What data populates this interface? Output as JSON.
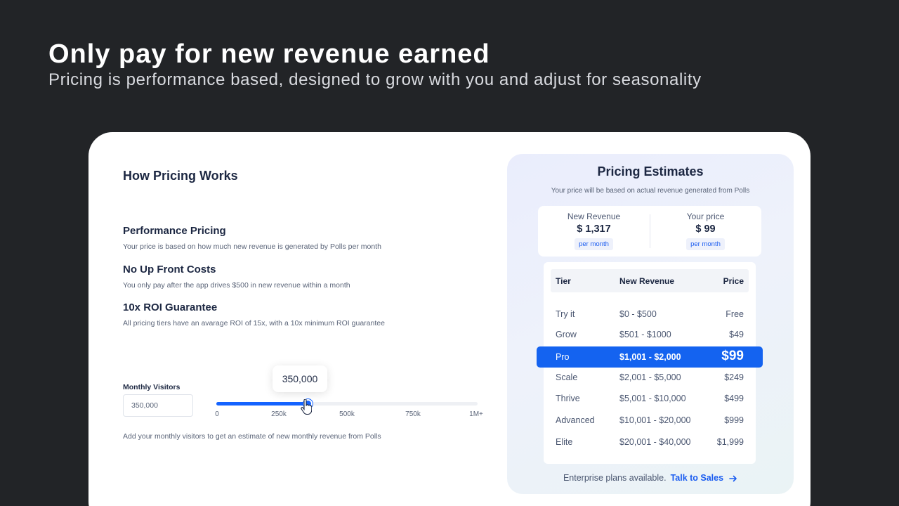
{
  "hero": {
    "title": "Only pay for new revenue earned",
    "subtitle": "Pricing is performance based, designed to grow with you and adjust for seasonality"
  },
  "left": {
    "title": "How Pricing Works",
    "features": [
      {
        "title": "Performance Pricing",
        "desc": "Your price is based on how much new revenue is generated by Polls per month"
      },
      {
        "title": "No Up Front Costs",
        "desc": "You only pay after the app drives $500 in new revenue within a month"
      },
      {
        "title": "10x ROI Guarantee",
        "desc": "All pricing tiers have an avarage ROI of 15x, with a 10x minimum ROI guarantee"
      }
    ],
    "visitors_label": "Monthly Visitors",
    "visitors_value": "350,000",
    "slider": {
      "tooltip": "350,000",
      "value": 350000,
      "max": 1000000,
      "ticks": [
        "0",
        "250k",
        "500k",
        "750k",
        "1M+"
      ]
    },
    "helper": "Add your monthly visitors to get an estimate of new monthly revenue from Polls"
  },
  "panel": {
    "title": "Pricing Estimates",
    "subtitle": "Your price will be based on actual revenue generated from Polls",
    "new_revenue_label": "New Revenue",
    "new_revenue_value": "$ 1,317",
    "new_revenue_period": "per month",
    "price_label": "Your price",
    "price_value": "$ 99",
    "price_period": "per month",
    "table_headers": {
      "tier": "Tier",
      "revenue": "New Revenue",
      "price": "Price"
    },
    "tiers": [
      {
        "tier": "Try it",
        "revenue": "$0 - $500",
        "price": "Free"
      },
      {
        "tier": "Grow",
        "revenue": "$501 - $1000",
        "price": "$49"
      },
      {
        "tier": "Pro",
        "revenue": "$1,001 - $2,000",
        "price": "$99"
      },
      {
        "tier": "Scale",
        "revenue": "$2,001 - $5,000",
        "price": "$249"
      },
      {
        "tier": "Thrive",
        "revenue": "$5,001 - $10,000",
        "price": "$499"
      },
      {
        "tier": "Advanced",
        "revenue": "$10,001 - $20,000",
        "price": "$999"
      },
      {
        "tier": "Elite",
        "revenue": "$20,001 - $40,000",
        "price": "$1,999"
      }
    ],
    "enterprise_text": "Enterprise plans available.",
    "talk_link": "Talk to Sales"
  },
  "colors": {
    "accent": "#1463f0",
    "background": "#222427"
  },
  "icons": {
    "cursor": "hand-pointer-icon",
    "arrow": "arrow-right-icon"
  }
}
